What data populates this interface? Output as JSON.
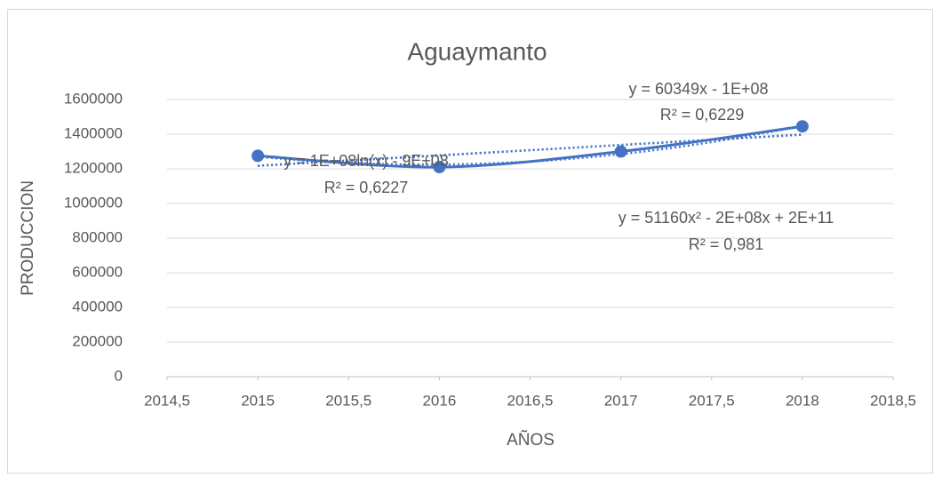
{
  "chart_data": {
    "type": "scatter",
    "title": "Aguaymanto",
    "x_label": "AÑOS",
    "y_label": "PRODUCCION",
    "x": [
      2015,
      2016,
      2017,
      2018
    ],
    "values": [
      1275000,
      1210000,
      1300000,
      1445000
    ],
    "color": "#4472c4",
    "xlim": [
      2014.5,
      2018.5
    ],
    "xticks": [
      {
        "value": 2014.5,
        "label": "2014,5"
      },
      2015,
      {
        "value": 2015.5,
        "label": "2015,5"
      },
      2016,
      {
        "value": 2016.5,
        "label": "2016,5"
      },
      2017,
      {
        "value": 2017.5,
        "label": "2017,5"
      },
      2018,
      {
        "value": 2018.5,
        "label": "2018,5"
      }
    ],
    "ylim": [
      0,
      1600000
    ],
    "yticks": [
      0,
      200000,
      400000,
      600000,
      800000,
      1000000,
      1200000,
      1400000,
      1600000
    ],
    "grid": true,
    "annotations": [
      "y = 60349x - 1E+08",
      "R² = 0,6229",
      "y = 1E+08ln(x) - 9E+08",
      "R² = 0,6227",
      "y = 51160x² - 2E+08x + 2E+11",
      "R² = 0,981"
    ]
  }
}
